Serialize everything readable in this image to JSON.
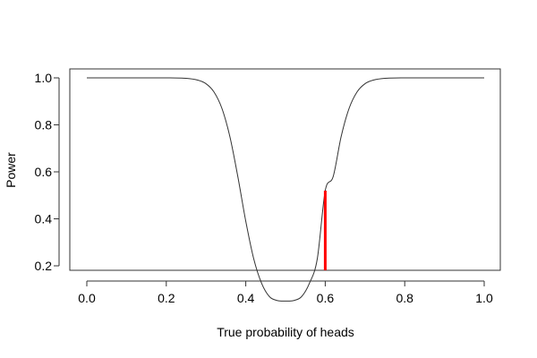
{
  "chart_data": {
    "type": "line",
    "title": "",
    "xlabel": "True probability of heads",
    "ylabel": "Power",
    "xlim": [
      0,
      1
    ],
    "ylim": [
      0,
      1
    ],
    "xticks": [
      0.0,
      0.2,
      0.4,
      0.6,
      0.8,
      1.0
    ],
    "xtick_labels": [
      "0.0",
      "0.2",
      "0.4",
      "0.6",
      "0.8",
      "1.0"
    ],
    "yticks": [
      0.2,
      0.4,
      0.6,
      0.8,
      1.0
    ],
    "ytick_labels": [
      "0.2",
      "0.4",
      "0.6",
      "0.8",
      "1.0"
    ],
    "grid": false,
    "legend": "none",
    "series": [
      {
        "x": [
          0.0,
          0.05,
          0.1,
          0.15,
          0.2,
          0.25,
          0.28,
          0.3,
          0.32,
          0.34,
          0.36,
          0.38,
          0.4,
          0.42,
          0.44,
          0.46,
          0.48,
          0.5,
          0.52,
          0.54,
          0.56,
          0.58,
          0.6,
          0.62,
          0.64,
          0.66,
          0.68,
          0.7,
          0.72,
          0.75,
          0.8,
          0.85,
          0.9,
          0.95,
          1.0
        ],
        "y": [
          1.0,
          1.0,
          1.0,
          1.0,
          1.0,
          0.998,
          0.99,
          0.975,
          0.94,
          0.87,
          0.75,
          0.58,
          0.39,
          0.23,
          0.125,
          0.068,
          0.052,
          0.05,
          0.052,
          0.068,
          0.125,
          0.23,
          0.52,
          0.58,
          0.75,
          0.87,
          0.94,
          0.975,
          0.99,
          0.998,
          1.0,
          1.0,
          1.0,
          1.0,
          1.0
        ],
        "color": "#333333"
      }
    ],
    "annotations": [
      {
        "type": "vline",
        "x": 0.6,
        "y_from": 0.0,
        "y_to": 0.52,
        "color": "#ff0000"
      }
    ]
  }
}
